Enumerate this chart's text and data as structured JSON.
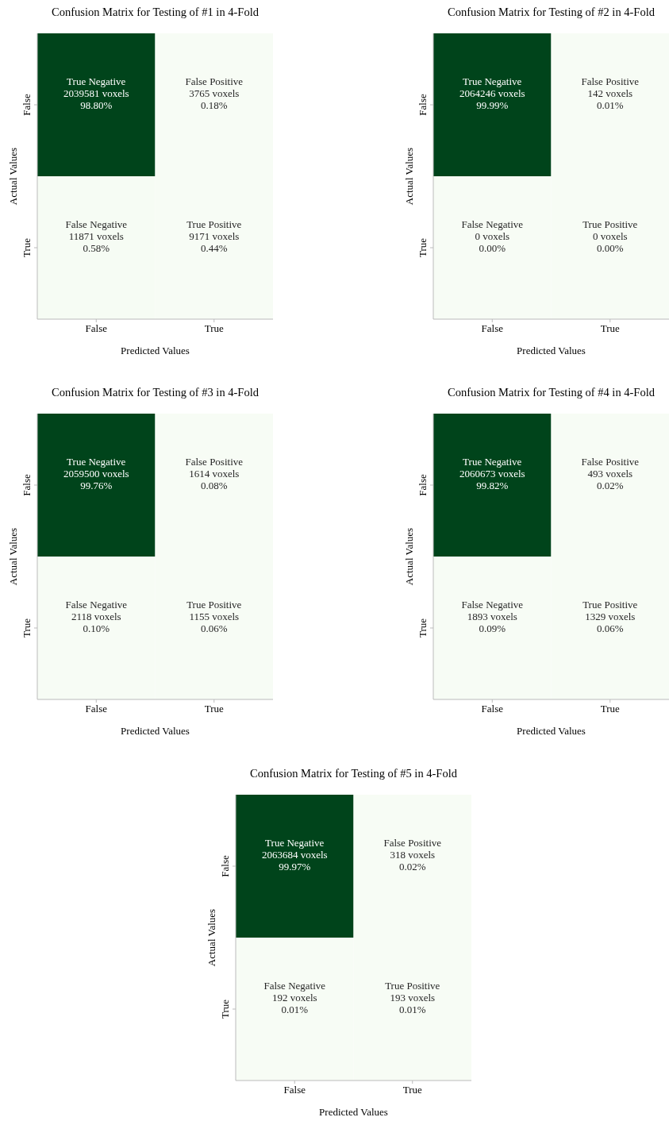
{
  "chart_data": [
    {
      "type": "heatmap",
      "title": "Confusion Matrix for Testing of #1 in 4-Fold",
      "xlabel": "Predicted Values",
      "ylabel": "Actual Values",
      "categories": [
        "False",
        "True"
      ],
      "y_categories": [
        "False",
        "True"
      ],
      "data_labels": true,
      "cells": [
        [
          2039581,
          3765
        ],
        [
          11871,
          9171
        ]
      ],
      "annotations": [
        "True Negative",
        "voxels",
        "98.80%",
        "False Positive",
        "voxels",
        "0.18%",
        "False Negative",
        "voxels",
        "0.58%",
        "True Positive",
        "voxels",
        "0.44%"
      ]
    },
    {
      "type": "heatmap",
      "title": "Confusion Matrix for Testing of #2 in 4-Fold",
      "xlabel": "Predicted Values",
      "ylabel": "Actual Values",
      "categories": [
        "False",
        "True"
      ],
      "y_categories": [
        "False",
        "True"
      ],
      "data_labels": true,
      "cells": [
        [
          2064246,
          142
        ],
        [
          0,
          0
        ]
      ],
      "annotations": [
        "True Negative",
        "voxels",
        "99.99%",
        "False Positive",
        "voxels",
        "0.01%",
        "False Negative",
        "voxels",
        "0.00%",
        "True Positive",
        "voxels",
        "0.00%"
      ]
    },
    {
      "type": "heatmap",
      "title": "Confusion Matrix for Testing of #3 in 4-Fold",
      "xlabel": "Predicted Values",
      "ylabel": "Actual Values",
      "categories": [
        "False",
        "True"
      ],
      "y_categories": [
        "False",
        "True"
      ],
      "data_labels": true,
      "cells": [
        [
          2059500,
          1614
        ],
        [
          2118,
          1155
        ]
      ],
      "annotations": [
        "True Negative",
        "voxels",
        "99.76%",
        "False Positive",
        "voxels",
        "0.08%",
        "False Negative",
        "voxels",
        "0.10%",
        "True Positive",
        "voxels",
        "0.06%"
      ]
    },
    {
      "type": "heatmap",
      "title": "Confusion Matrix for Testing of #4 in 4-Fold",
      "xlabel": "Predicted Values",
      "ylabel": "Actual Values",
      "categories": [
        "False",
        "True"
      ],
      "y_categories": [
        "False",
        "True"
      ],
      "data_labels": true,
      "cells": [
        [
          2060673,
          493
        ],
        [
          1893,
          1329
        ]
      ],
      "annotations": [
        "True Negative",
        "voxels",
        "99.82%",
        "False Positive",
        "voxels",
        "0.02%",
        "False Negative",
        "voxels",
        "0.09%",
        "True Positive",
        "voxels",
        "0.06%"
      ]
    },
    {
      "type": "heatmap",
      "title": "Confusion Matrix for Testing of #5 in 4-Fold",
      "xlabel": "Predicted Values",
      "ylabel": "Actual Values",
      "categories": [
        "False",
        "True"
      ],
      "y_categories": [
        "False",
        "True"
      ],
      "data_labels": true,
      "cells": [
        [
          2063684,
          318
        ],
        [
          192,
          193
        ]
      ],
      "annotations": [
        "True Negative",
        "voxels",
        "99.97%",
        "False Positive",
        "voxels",
        "0.02%",
        "False Negative",
        "voxels",
        "0.01%",
        "True Positive",
        "voxels",
        "0.01%"
      ]
    }
  ]
}
